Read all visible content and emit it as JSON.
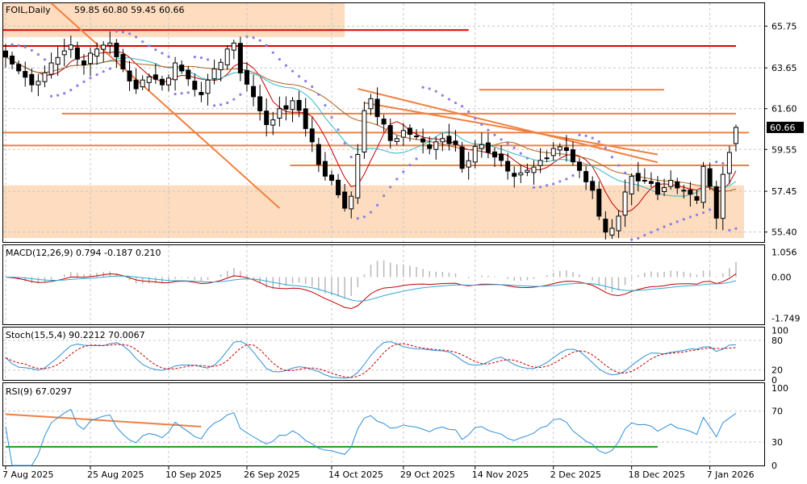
{
  "chart_data": {
    "type": "candlestick",
    "symbol_label": "FOIL,Daily",
    "ohlc_label": "59.85 60.80 59.45 60.66",
    "last_price_label": "60.66",
    "colors": {
      "bull": "#ffffff",
      "bear": "#000000",
      "sma_fast": "#c00000",
      "sma_mid": "#2fb7c7",
      "sma_slow": "#b06020",
      "psar": "#8a7fe6",
      "hline": "#e00000",
      "trend": "#f08040",
      "zone": "#fddcbf",
      "macd_signal": "#c00000",
      "macd_line": "#2fa7d7",
      "stoch_k": "#2f8fd7",
      "stoch_d": "#c00000",
      "rsi": "#2f8fd7",
      "rsi_support": "#1a9a1a",
      "rsi_trend": "#f08040",
      "grid": "#c8c8c8"
    },
    "price_axis": {
      "range": [
        54.9,
        66.9
      ],
      "ticks": [
        {
          "v": 65.75,
          "label": "65.75"
        },
        {
          "v": 63.65,
          "label": "63.65"
        },
        {
          "v": 61.6,
          "label": "61.60"
        },
        {
          "v": 59.55,
          "label": "59.55"
        },
        {
          "v": 57.45,
          "label": "57.45"
        },
        {
          "v": 55.4,
          "label": "55.40"
        }
      ]
    },
    "dates": [
      {
        "i": 0,
        "label": "7 Aug 2025"
      },
      {
        "i": 13,
        "label": "25 Aug 2025"
      },
      {
        "i": 25,
        "label": "10 Sep 2025"
      },
      {
        "i": 37,
        "label": "26 Sep 2025"
      },
      {
        "i": 50,
        "label": "14 Oct 2025"
      },
      {
        "i": 61,
        "label": "29 Oct 2025"
      },
      {
        "i": 72,
        "label": "14 Nov 2025"
      },
      {
        "i": 84,
        "label": "2 Dec 2025"
      },
      {
        "i": 96,
        "label": "18 Dec 2025"
      },
      {
        "i": 108,
        "label": "7 Jan 2026"
      }
    ],
    "bar_count": 113,
    "close_anchors": [
      [
        0,
        64.2
      ],
      [
        2,
        63.5
      ],
      [
        4,
        62.8
      ],
      [
        7,
        63.9
      ],
      [
        10,
        64.8
      ],
      [
        12,
        63.8
      ],
      [
        14,
        64.6
      ],
      [
        16,
        64.9
      ],
      [
        18,
        63.6
      ],
      [
        20,
        62.6
      ],
      [
        22,
        63.2
      ],
      [
        24,
        62.8
      ],
      [
        26,
        63.9
      ],
      [
        28,
        63.1
      ],
      [
        30,
        62.3
      ],
      [
        32,
        63.6
      ],
      [
        34,
        64.6
      ],
      [
        35,
        64.9
      ],
      [
        36,
        63.4
      ],
      [
        38,
        62.2
      ],
      [
        40,
        60.8
      ],
      [
        42,
        61.6
      ],
      [
        44,
        62.0
      ],
      [
        46,
        60.6
      ],
      [
        48,
        58.8
      ],
      [
        50,
        58.0
      ],
      [
        52,
        56.6
      ],
      [
        53,
        57.2
      ],
      [
        54,
        59.3
      ],
      [
        55,
        61.5
      ],
      [
        56,
        62.1
      ],
      [
        57,
        61.2
      ],
      [
        59,
        60.0
      ],
      [
        61,
        60.5
      ],
      [
        63,
        60.2
      ],
      [
        65,
        59.6
      ],
      [
        67,
        60.1
      ],
      [
        69,
        59.8
      ],
      [
        70,
        58.6
      ],
      [
        72,
        59.7
      ],
      [
        74,
        59.4
      ],
      [
        76,
        59.0
      ],
      [
        78,
        58.2
      ],
      [
        80,
        58.5
      ],
      [
        82,
        59.0
      ],
      [
        84,
        59.6
      ],
      [
        86,
        59.5
      ],
      [
        88,
        58.5
      ],
      [
        90,
        57.5
      ],
      [
        91,
        56.2
      ],
      [
        92,
        55.4
      ],
      [
        94,
        56.2
      ],
      [
        96,
        58.2
      ],
      [
        98,
        58.0
      ],
      [
        100,
        57.3
      ],
      [
        102,
        58.0
      ],
      [
        104,
        57.5
      ],
      [
        106,
        57.0
      ],
      [
        107,
        58.7
      ],
      [
        108,
        57.7
      ],
      [
        109,
        56.1
      ],
      [
        110,
        58.3
      ],
      [
        111,
        59.4
      ],
      [
        112,
        60.66
      ]
    ],
    "last_bar": {
      "open": 59.85,
      "high": 60.8,
      "low": 59.45,
      "close": 60.66
    },
    "horizontal_levels": [
      {
        "v": 65.55,
        "from": 0,
        "to": 71
      },
      {
        "v": 64.75,
        "from": 0,
        "to": 112
      },
      {
        "v": 62.55,
        "from": 73,
        "to": 101
      },
      {
        "v": 61.35,
        "from": 9,
        "to": 112
      },
      {
        "v": 60.4,
        "from": 0,
        "to": 114
      },
      {
        "v": 59.75,
        "from": 0,
        "to": 112
      },
      {
        "v": 58.75,
        "from": 44,
        "to": 114
      }
    ],
    "trendlines": [
      {
        "from": [
          7,
          66.9
        ],
        "to": [
          42,
          56.6
        ]
      },
      {
        "from": [
          54,
          62.6
        ],
        "to": [
          100,
          58.9
        ]
      },
      {
        "from": [
          55,
          61.9
        ],
        "to": [
          100,
          59.3
        ]
      }
    ],
    "zones": [
      {
        "from": 0,
        "to": 52,
        "top": 66.9,
        "bottom": 65.2
      },
      {
        "from": 0,
        "to": 114,
        "top": 57.75,
        "bottom": 55.1
      }
    ],
    "indicators": {
      "macd": {
        "label": "MACD(12,26,9) 0.794 -0.187 0.210",
        "ticks": [
          {
            "v": 1.056,
            "label": "1.056"
          },
          {
            "v": 0.0,
            "label": "0.00"
          },
          {
            "v": -1.749,
            "label": "-1.749"
          }
        ],
        "range": [
          -2.0,
          1.35
        ]
      },
      "stoch": {
        "label": "Stoch(15,5,4) 90.2212 70.0067",
        "ticks": [
          {
            "v": 100,
            "label": "100"
          },
          {
            "v": 80,
            "label": "80"
          },
          {
            "v": 20,
            "label": "20"
          },
          {
            "v": 0,
            "label": "0"
          }
        ],
        "range": [
          0,
          106
        ]
      },
      "rsi": {
        "label": "RSI(9) 67.0297",
        "ticks": [
          {
            "v": 100,
            "label": "100"
          },
          {
            "v": 70,
            "label": "70"
          },
          {
            "v": 30,
            "label": "30"
          },
          {
            "v": 0,
            "label": "0"
          }
        ],
        "range": [
          0,
          106
        ],
        "support_level": 24,
        "trend": {
          "from": [
            0,
            66
          ],
          "to": [
            30,
            50
          ]
        }
      }
    }
  }
}
